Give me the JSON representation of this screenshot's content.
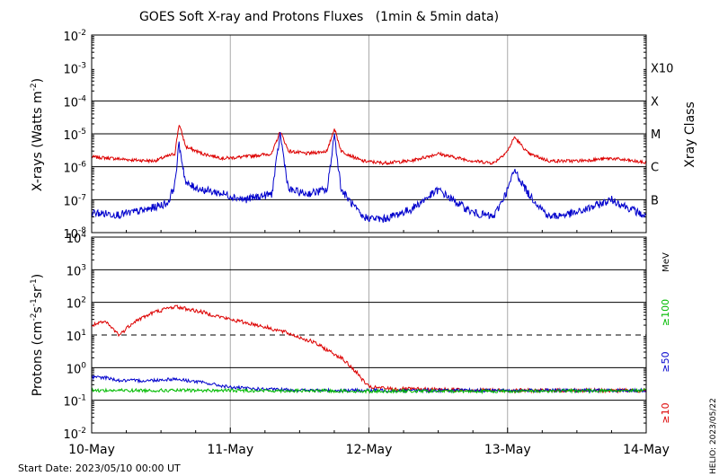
{
  "chart_data": [
    {
      "type": "line",
      "title": "GOES Soft X-ray and Protons Fluxes   (1min & 5min data)",
      "ylabel": "X-rays (Watts m^-2)",
      "ylabel_right": "Xray Class",
      "yscale": "log",
      "ylim": [
        1e-08,
        0.01
      ],
      "y_ticks": [
        {
          "label": "10",
          "exp": "-8"
        },
        {
          "label": "10",
          "exp": "-7"
        },
        {
          "label": "10",
          "exp": "-6"
        },
        {
          "label": "10",
          "exp": "-5"
        },
        {
          "label": "10",
          "exp": "-4"
        },
        {
          "label": "10",
          "exp": "-3"
        },
        {
          "label": "10",
          "exp": "-2"
        }
      ],
      "class_labels": [
        {
          "label": "B",
          "value": 1e-07
        },
        {
          "label": "C",
          "value": 1e-06
        },
        {
          "label": "M",
          "value": 1e-05
        },
        {
          "label": "X",
          "value": 0.0001
        },
        {
          "label": "X10",
          "value": 0.001
        }
      ],
      "grid": true,
      "series": [
        {
          "color": "#dd0000",
          "points": [
            [
              0.0,
              2e-06
            ],
            [
              0.15,
              1.8e-06
            ],
            [
              0.3,
              1.6e-06
            ],
            [
              0.45,
              1.5e-06
            ],
            [
              0.6,
              2.5e-06
            ],
            [
              0.63,
              2e-05
            ],
            [
              0.68,
              4e-06
            ],
            [
              0.8,
              2.5e-06
            ],
            [
              0.95,
              1.8e-06
            ],
            [
              1.1,
              2e-06
            ],
            [
              1.3,
              2.5e-06
            ],
            [
              1.36,
              1.2e-05
            ],
            [
              1.42,
              3e-06
            ],
            [
              1.55,
              2.5e-06
            ],
            [
              1.7,
              3e-06
            ],
            [
              1.75,
              1.5e-05
            ],
            [
              1.8,
              3e-06
            ],
            [
              1.95,
              1.5e-06
            ],
            [
              2.1,
              1.3e-06
            ],
            [
              2.3,
              1.5e-06
            ],
            [
              2.5,
              2.5e-06
            ],
            [
              2.6,
              2e-06
            ],
            [
              2.75,
              1.5e-06
            ],
            [
              2.9,
              1.3e-06
            ],
            [
              3.0,
              3e-06
            ],
            [
              3.05,
              8e-06
            ],
            [
              3.15,
              2.5e-06
            ],
            [
              3.3,
              1.5e-06
            ],
            [
              3.5,
              1.5e-06
            ],
            [
              3.75,
              1.8e-06
            ],
            [
              3.9,
              1.5e-06
            ],
            [
              4.0,
              1.3e-06
            ]
          ]
        },
        {
          "color": "#0000cc",
          "points": [
            [
              0.0,
              4e-08
            ],
            [
              0.2,
              3.5e-08
            ],
            [
              0.4,
              5e-08
            ],
            [
              0.55,
              8e-08
            ],
            [
              0.6,
              3e-07
            ],
            [
              0.63,
              5e-06
            ],
            [
              0.68,
              3e-07
            ],
            [
              0.8,
              2e-07
            ],
            [
              0.95,
              1.5e-07
            ],
            [
              1.1,
              1e-07
            ],
            [
              1.3,
              1.5e-07
            ],
            [
              1.36,
              1e-05
            ],
            [
              1.42,
              2e-07
            ],
            [
              1.55,
              1.5e-07
            ],
            [
              1.7,
              2e-07
            ],
            [
              1.75,
              1e-05
            ],
            [
              1.8,
              2e-07
            ],
            [
              1.95,
              3e-08
            ],
            [
              2.1,
              2.5e-08
            ],
            [
              2.3,
              5e-08
            ],
            [
              2.5,
              2e-07
            ],
            [
              2.6,
              1e-07
            ],
            [
              2.75,
              4e-08
            ],
            [
              2.9,
              3e-08
            ],
            [
              3.0,
              2e-07
            ],
            [
              3.05,
              8e-07
            ],
            [
              3.15,
              1.5e-07
            ],
            [
              3.3,
              3e-08
            ],
            [
              3.5,
              4e-08
            ],
            [
              3.75,
              1e-07
            ],
            [
              3.9,
              5e-08
            ],
            [
              4.0,
              3e-08
            ]
          ]
        }
      ]
    },
    {
      "type": "line",
      "ylabel": "Protons (cm^-2 s^-1 sr^-1)",
      "yscale": "log",
      "ylim": [
        0.01,
        10000
      ],
      "y_ticks": [
        {
          "label": "10",
          "exp": "-2"
        },
        {
          "label": "10",
          "exp": "-1"
        },
        {
          "label": "10",
          "exp": "0"
        },
        {
          "label": "10",
          "exp": "1"
        },
        {
          "label": "10",
          "exp": "2"
        },
        {
          "label": "10",
          "exp": "3"
        },
        {
          "label": "10",
          "exp": "4"
        }
      ],
      "threshold": 10,
      "energy_unit": "MeV",
      "energy_labels": [
        {
          "label": "≥100",
          "color": "#00bb00"
        },
        {
          "label": "≥50",
          "color": "#0000cc"
        },
        {
          "label": "≥10",
          "color": "#dd0000"
        }
      ],
      "grid": true,
      "series": [
        {
          "color": "#dd0000",
          "points": [
            [
              0.0,
              20
            ],
            [
              0.1,
              25
            ],
            [
              0.2,
              10
            ],
            [
              0.3,
              25
            ],
            [
              0.45,
              50
            ],
            [
              0.6,
              75
            ],
            [
              0.8,
              50
            ],
            [
              1.0,
              30
            ],
            [
              1.2,
              20
            ],
            [
              1.4,
              12
            ],
            [
              1.6,
              6
            ],
            [
              1.8,
              2
            ],
            [
              1.9,
              0.8
            ],
            [
              2.0,
              0.25
            ],
            [
              2.2,
              0.22
            ],
            [
              2.6,
              0.21
            ],
            [
              3.0,
              0.2
            ],
            [
              3.5,
              0.2
            ],
            [
              4.0,
              0.2
            ]
          ]
        },
        {
          "color": "#0000cc",
          "points": [
            [
              0.0,
              0.5
            ],
            [
              0.1,
              0.5
            ],
            [
              0.2,
              0.4
            ],
            [
              0.4,
              0.4
            ],
            [
              0.6,
              0.45
            ],
            [
              0.8,
              0.35
            ],
            [
              1.0,
              0.25
            ],
            [
              1.2,
              0.22
            ],
            [
              1.6,
              0.2
            ],
            [
              2.0,
              0.2
            ],
            [
              3.0,
              0.2
            ],
            [
              4.0,
              0.2
            ]
          ]
        },
        {
          "color": "#00bb00",
          "points": [
            [
              0.0,
              0.2
            ],
            [
              1.0,
              0.2
            ],
            [
              2.0,
              0.19
            ],
            [
              3.0,
              0.19
            ],
            [
              4.0,
              0.2
            ]
          ]
        }
      ]
    }
  ],
  "x_axis": {
    "categories": [
      "10-May",
      "11-May",
      "12-May",
      "13-May",
      "14-May"
    ]
  },
  "footer": {
    "start_date": "Start Date: 2023/05/10 00:00 UT",
    "stamp": "HELIO: 2023/05/22"
  }
}
